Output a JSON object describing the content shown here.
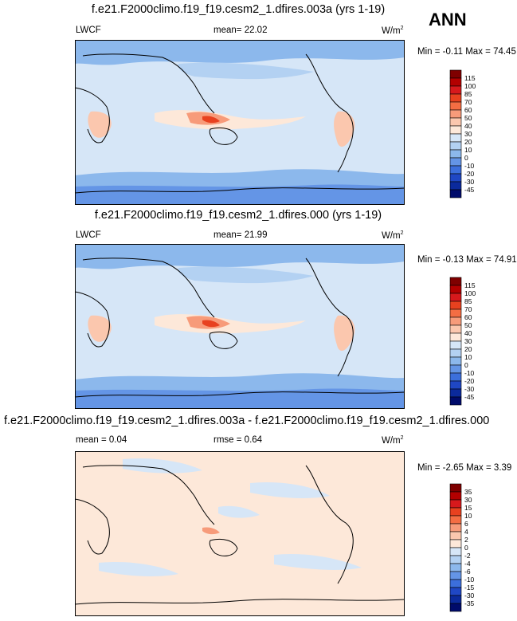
{
  "season": "ANN",
  "panels": [
    {
      "title": "f.e21.F2000climo.f19_f19.cesm2_1.dfires.003a (yrs 1-19)",
      "left_label": "LWCF",
      "mean_label": "mean=",
      "mean_value": "22.02",
      "units": "W/m",
      "units_sup": "2",
      "min_label": "Min =",
      "min_value": "-0.11",
      "max_label": "Max =",
      "max_value": "74.45",
      "colorbar": {
        "levels": [
          "115",
          "100",
          "85",
          "70",
          "60",
          "50",
          "40",
          "30",
          "20",
          "10",
          "0",
          "-10",
          "-20",
          "-30",
          "-45"
        ],
        "colors": [
          "#7f0000",
          "#b30000",
          "#d7191c",
          "#e8411f",
          "#f46d43",
          "#f79b7a",
          "#fbc7ae",
          "#fde8d9",
          "#d6e6f7",
          "#b3d1f2",
          "#8cb8ec",
          "#6495e6",
          "#3c6fdc",
          "#1f47c4",
          "#0b2a9c",
          "#000b6b"
        ]
      }
    },
    {
      "title": "f.e21.F2000climo.f19_f19.cesm2_1.dfires.000 (yrs 1-19)",
      "left_label": "LWCF",
      "mean_label": "mean=",
      "mean_value": "21.99",
      "units": "W/m",
      "units_sup": "2",
      "min_label": "Min =",
      "min_value": "-0.13",
      "max_label": "Max =",
      "max_value": "74.91",
      "colorbar": {
        "levels": [
          "115",
          "100",
          "85",
          "70",
          "60",
          "50",
          "40",
          "30",
          "20",
          "10",
          "0",
          "-10",
          "-20",
          "-30",
          "-45"
        ],
        "colors": [
          "#7f0000",
          "#b30000",
          "#d7191c",
          "#e8411f",
          "#f46d43",
          "#f79b7a",
          "#fbc7ae",
          "#fde8d9",
          "#d6e6f7",
          "#b3d1f2",
          "#8cb8ec",
          "#6495e6",
          "#3c6fdc",
          "#1f47c4",
          "#0b2a9c",
          "#000b6b"
        ]
      }
    },
    {
      "title": "f.e21.F2000climo.f19_f19.cesm2_1.dfires.003a - f.e21.F2000climo.f19_f19.cesm2_1.dfires.000",
      "left_label": "",
      "mean_label": "mean =",
      "mean_value": "0.04",
      "rmse_label": "rmse =",
      "rmse_value": "0.64",
      "units": "W/m",
      "units_sup": "2",
      "min_label": "Min =",
      "min_value": "-2.65",
      "max_label": "Max =",
      "max_value": "3.39",
      "colorbar": {
        "levels": [
          "35",
          "30",
          "15",
          "10",
          "6",
          "4",
          "2",
          "0",
          "-2",
          "-4",
          "-6",
          "-10",
          "-15",
          "-30",
          "-35"
        ],
        "colors": [
          "#7f0000",
          "#b30000",
          "#d7191c",
          "#e8411f",
          "#f46d43",
          "#f79b7a",
          "#fbc7ae",
          "#fde8d9",
          "#d6e6f7",
          "#b3d1f2",
          "#8cb8ec",
          "#6495e6",
          "#3c6fdc",
          "#1f47c4",
          "#0b2a9c",
          "#000b6b"
        ]
      }
    }
  ]
}
